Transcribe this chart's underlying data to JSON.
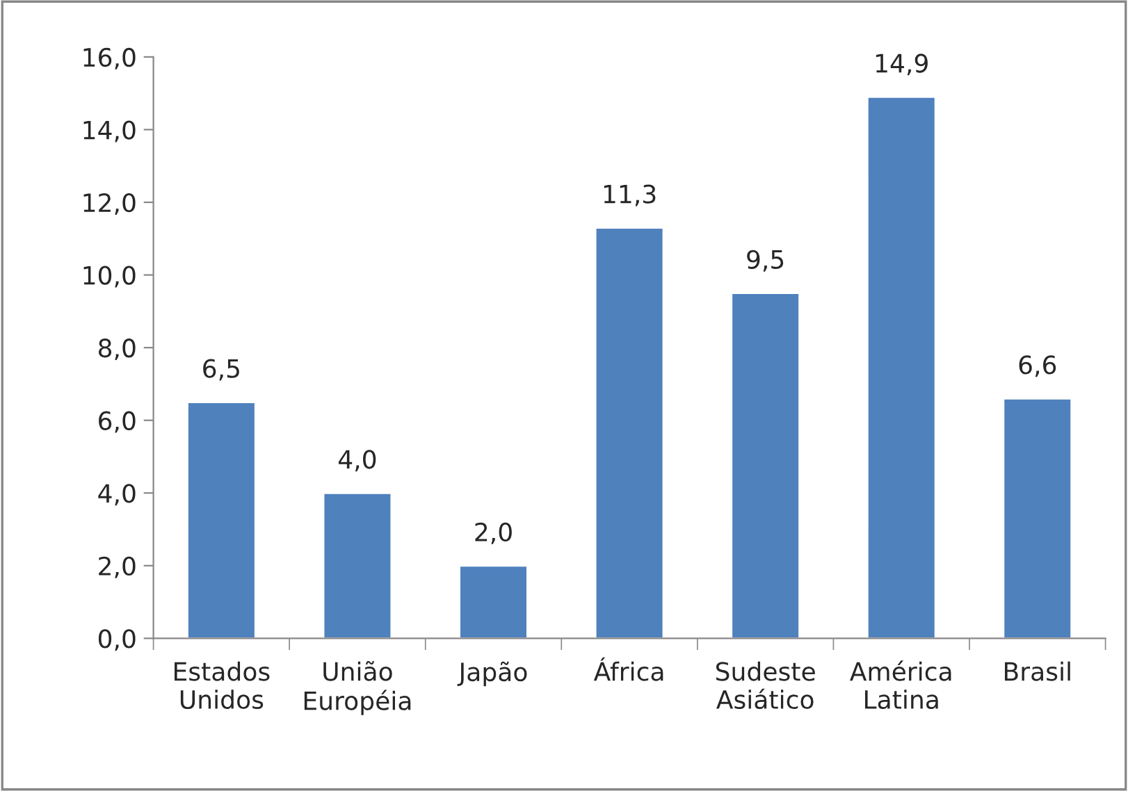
{
  "chart_data": {
    "type": "bar",
    "categories": [
      "Estados\nUnidos",
      "União\nEuropéia",
      "Japão",
      "África",
      "Sudeste\nAsiático",
      "América\nLatina",
      "Brasil"
    ],
    "values": [
      6.5,
      4.0,
      2.0,
      11.3,
      9.5,
      14.9,
      6.6
    ],
    "value_labels": [
      "6,5",
      "4,0",
      "2,0",
      "11,3",
      "9,5",
      "14,9",
      "6,6"
    ],
    "color": "#4f81bd",
    "ylim": [
      0,
      16
    ],
    "yticks": [
      {
        "value": 0,
        "label": "0,0"
      },
      {
        "value": 2,
        "label": "2,0"
      },
      {
        "value": 4,
        "label": "4,0"
      },
      {
        "value": 6,
        "label": "6,0"
      },
      {
        "value": 8,
        "label": "8,0"
      },
      {
        "value": 10,
        "label": "10,0"
      },
      {
        "value": 12,
        "label": "12,0"
      },
      {
        "value": 14,
        "label": "14,0"
      },
      {
        "value": 16,
        "label": "16,0"
      }
    ],
    "grid": false,
    "legend": false
  }
}
